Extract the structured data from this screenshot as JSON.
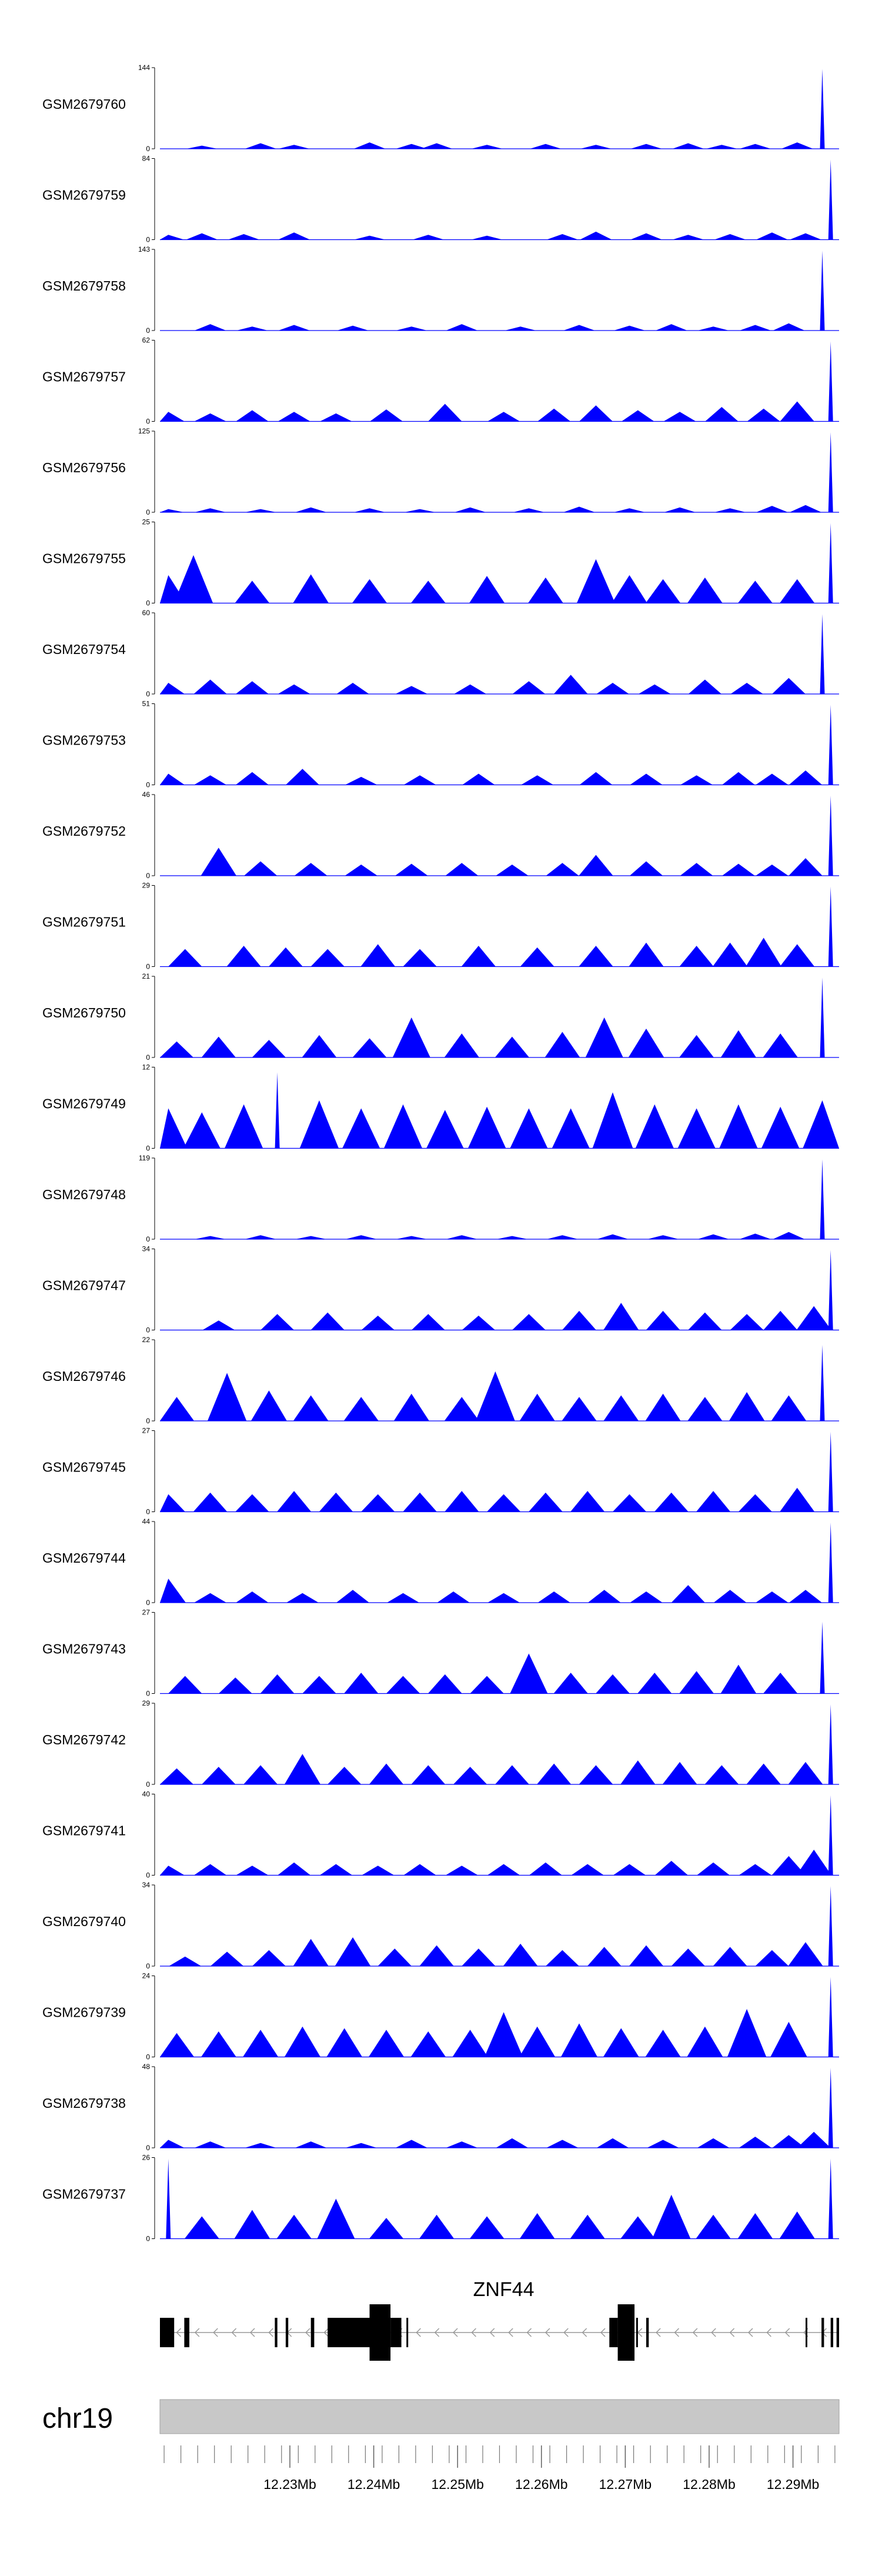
{
  "chart_data": {
    "type": "area",
    "chromosome": "chr19",
    "x_range_mb": [
      12.2145,
      12.2955
    ],
    "x_ticks": [
      "12.23Mb",
      "12.24Mb",
      "12.25Mb",
      "12.26Mb",
      "12.27Mb",
      "12.28Mb",
      "12.29Mb"
    ],
    "x_tick_values": [
      12.23,
      12.24,
      12.25,
      12.26,
      12.27,
      12.28,
      12.29
    ],
    "fill_color": "#0000ff",
    "tracks": [
      {
        "name": "GSM2679760",
        "ymax": "144",
        "ymin": "0",
        "peak_positions": [
          12.2195,
          12.2265,
          12.2305,
          12.2395,
          12.2445,
          12.2475,
          12.2535,
          12.2605,
          12.2665,
          12.2725,
          12.2775,
          12.2815,
          12.2855,
          12.2905,
          12.2935
        ],
        "peak_levels": [
          0.04,
          0.07,
          0.05,
          0.08,
          0.06,
          0.07,
          0.05,
          0.06,
          0.05,
          0.06,
          0.07,
          0.05,
          0.06,
          0.08,
          1.0
        ]
      },
      {
        "name": "GSM2679759",
        "ymax": "84",
        "ymin": "0",
        "peak_positions": [
          12.2155,
          12.2195,
          12.2245,
          12.2305,
          12.2395,
          12.2465,
          12.2535,
          12.2625,
          12.2665,
          12.2725,
          12.2775,
          12.2825,
          12.2875,
          12.2915,
          12.2945
        ],
        "peak_levels": [
          0.06,
          0.08,
          0.07,
          0.09,
          0.05,
          0.06,
          0.05,
          0.07,
          0.1,
          0.08,
          0.06,
          0.07,
          0.09,
          0.08,
          1.0
        ]
      },
      {
        "name": "GSM2679758",
        "ymax": "143",
        "ymin": "0",
        "peak_positions": [
          12.2205,
          12.2255,
          12.2305,
          12.2375,
          12.2445,
          12.2505,
          12.2575,
          12.2645,
          12.2705,
          12.2755,
          12.2805,
          12.2855,
          12.2895,
          12.2935
        ],
        "peak_levels": [
          0.08,
          0.05,
          0.07,
          0.06,
          0.05,
          0.08,
          0.05,
          0.07,
          0.06,
          0.08,
          0.05,
          0.07,
          0.09,
          1.0
        ]
      },
      {
        "name": "GSM2679757",
        "ymax": "62",
        "ymin": "0",
        "peak_positions": [
          12.2155,
          12.2205,
          12.2255,
          12.2305,
          12.2355,
          12.2415,
          12.2485,
          12.2555,
          12.2615,
          12.2665,
          12.2715,
          12.2765,
          12.2815,
          12.2865,
          12.2905,
          12.2945
        ],
        "peak_levels": [
          0.12,
          0.1,
          0.14,
          0.12,
          0.1,
          0.15,
          0.22,
          0.12,
          0.16,
          0.2,
          0.14,
          0.12,
          0.18,
          0.16,
          0.25,
          1.0
        ]
      },
      {
        "name": "GSM2679756",
        "ymax": "125",
        "ymin": "0",
        "peak_positions": [
          12.2155,
          12.2205,
          12.2265,
          12.2325,
          12.2395,
          12.2455,
          12.2515,
          12.2585,
          12.2645,
          12.2705,
          12.2765,
          12.2825,
          12.2875,
          12.2915,
          12.2945
        ],
        "peak_levels": [
          0.04,
          0.05,
          0.04,
          0.06,
          0.05,
          0.04,
          0.06,
          0.05,
          0.07,
          0.05,
          0.06,
          0.05,
          0.08,
          0.09,
          1.0
        ]
      },
      {
        "name": "GSM2679755",
        "ymax": "25",
        "ymin": "0",
        "peak_positions": [
          12.2155,
          12.2185,
          12.2255,
          12.2325,
          12.2395,
          12.2465,
          12.2535,
          12.2605,
          12.2665,
          12.2705,
          12.2745,
          12.2795,
          12.2855,
          12.2905,
          12.2945
        ],
        "peak_levels": [
          0.35,
          0.6,
          0.28,
          0.36,
          0.3,
          0.28,
          0.34,
          0.32,
          0.55,
          0.35,
          0.3,
          0.32,
          0.28,
          0.3,
          1.0
        ]
      },
      {
        "name": "GSM2679754",
        "ymax": "60",
        "ymin": "0",
        "peak_positions": [
          12.2155,
          12.2205,
          12.2255,
          12.2305,
          12.2375,
          12.2445,
          12.2515,
          12.2585,
          12.2635,
          12.2685,
          12.2735,
          12.2795,
          12.2845,
          12.2895,
          12.2935
        ],
        "peak_levels": [
          0.14,
          0.18,
          0.16,
          0.12,
          0.14,
          0.1,
          0.12,
          0.16,
          0.24,
          0.14,
          0.12,
          0.18,
          0.14,
          0.2,
          1.0
        ]
      },
      {
        "name": "GSM2679753",
        "ymax": "51",
        "ymin": "0",
        "peak_positions": [
          12.2155,
          12.2205,
          12.2255,
          12.2315,
          12.2385,
          12.2455,
          12.2525,
          12.2595,
          12.2665,
          12.2725,
          12.2785,
          12.2835,
          12.2875,
          12.2915,
          12.2945
        ],
        "peak_levels": [
          0.14,
          0.12,
          0.16,
          0.2,
          0.1,
          0.12,
          0.14,
          0.12,
          0.16,
          0.14,
          0.12,
          0.16,
          0.14,
          0.18,
          1.0
        ]
      },
      {
        "name": "GSM2679752",
        "ymax": "46",
        "ymin": "0",
        "peak_positions": [
          12.2215,
          12.2265,
          12.2325,
          12.2385,
          12.2445,
          12.2505,
          12.2565,
          12.2625,
          12.2665,
          12.2725,
          12.2785,
          12.2835,
          12.2875,
          12.2915,
          12.2945
        ],
        "peak_levels": [
          0.35,
          0.18,
          0.16,
          0.14,
          0.15,
          0.16,
          0.14,
          0.16,
          0.26,
          0.18,
          0.16,
          0.15,
          0.14,
          0.22,
          1.0
        ]
      },
      {
        "name": "GSM2679751",
        "ymax": "29",
        "ymin": "0",
        "peak_positions": [
          12.2175,
          12.2245,
          12.2295,
          12.2345,
          12.2405,
          12.2455,
          12.2525,
          12.2595,
          12.2665,
          12.2725,
          12.2785,
          12.2825,
          12.2865,
          12.2905,
          12.2945
        ],
        "peak_levels": [
          0.22,
          0.26,
          0.24,
          0.22,
          0.28,
          0.22,
          0.26,
          0.24,
          0.26,
          0.3,
          0.26,
          0.3,
          0.36,
          0.28,
          1.0
        ]
      },
      {
        "name": "GSM2679750",
        "ymax": "21",
        "ymin": "0",
        "peak_positions": [
          12.2165,
          12.2215,
          12.2275,
          12.2335,
          12.2395,
          12.2445,
          12.2505,
          12.2565,
          12.2625,
          12.2675,
          12.2725,
          12.2785,
          12.2835,
          12.2885,
          12.2935
        ],
        "peak_levels": [
          0.2,
          0.26,
          0.22,
          0.28,
          0.24,
          0.5,
          0.3,
          0.26,
          0.32,
          0.5,
          0.36,
          0.28,
          0.34,
          0.3,
          1.0
        ]
      },
      {
        "name": "GSM2679749",
        "ymax": "12",
        "ymin": "0",
        "peak_positions": [
          12.2155,
          12.2195,
          12.2245,
          12.2285,
          12.2335,
          12.2385,
          12.2435,
          12.2485,
          12.2535,
          12.2585,
          12.2635,
          12.2685,
          12.2735,
          12.2785,
          12.2835,
          12.2885,
          12.2935
        ],
        "peak_levels": [
          0.5,
          0.45,
          0.55,
          0.95,
          0.6,
          0.5,
          0.55,
          0.48,
          0.52,
          0.5,
          0.5,
          0.7,
          0.55,
          0.5,
          0.55,
          0.52,
          0.6
        ]
      },
      {
        "name": "GSM2679748",
        "ymax": "119",
        "ymin": "0",
        "peak_positions": [
          12.2205,
          12.2265,
          12.2325,
          12.2385,
          12.2445,
          12.2505,
          12.2565,
          12.2625,
          12.2685,
          12.2745,
          12.2805,
          12.2855,
          12.2895,
          12.2935
        ],
        "peak_levels": [
          0.04,
          0.05,
          0.04,
          0.05,
          0.04,
          0.05,
          0.04,
          0.05,
          0.06,
          0.05,
          0.06,
          0.07,
          0.09,
          1.0
        ]
      },
      {
        "name": "GSM2679747",
        "ymax": "34",
        "ymin": "0",
        "peak_positions": [
          12.2215,
          12.2285,
          12.2345,
          12.2405,
          12.2465,
          12.2525,
          12.2585,
          12.2645,
          12.2695,
          12.2745,
          12.2795,
          12.2845,
          12.2885,
          12.2925,
          12.2945
        ],
        "peak_levels": [
          0.12,
          0.2,
          0.22,
          0.18,
          0.2,
          0.18,
          0.2,
          0.24,
          0.34,
          0.24,
          0.22,
          0.2,
          0.24,
          0.3,
          1.0
        ]
      },
      {
        "name": "GSM2679746",
        "ymax": "22",
        "ymin": "0",
        "peak_positions": [
          12.2165,
          12.2225,
          12.2275,
          12.2325,
          12.2385,
          12.2445,
          12.2505,
          12.2545,
          12.2595,
          12.2645,
          12.2695,
          12.2745,
          12.2795,
          12.2845,
          12.2895,
          12.2935
        ],
        "peak_levels": [
          0.3,
          0.6,
          0.38,
          0.32,
          0.3,
          0.34,
          0.3,
          0.62,
          0.34,
          0.3,
          0.32,
          0.34,
          0.3,
          0.36,
          0.32,
          0.95
        ]
      },
      {
        "name": "GSM2679745",
        "ymax": "27",
        "ymin": "0",
        "peak_positions": [
          12.2155,
          12.2205,
          12.2255,
          12.2305,
          12.2355,
          12.2405,
          12.2455,
          12.2505,
          12.2555,
          12.2605,
          12.2655,
          12.2705,
          12.2755,
          12.2805,
          12.2855,
          12.2905,
          12.2945
        ],
        "peak_levels": [
          0.22,
          0.24,
          0.22,
          0.26,
          0.24,
          0.22,
          0.24,
          0.26,
          0.22,
          0.24,
          0.26,
          0.22,
          0.24,
          0.26,
          0.22,
          0.3,
          1.0
        ]
      },
      {
        "name": "GSM2679744",
        "ymax": "44",
        "ymin": "0",
        "peak_positions": [
          12.2155,
          12.2205,
          12.2255,
          12.2315,
          12.2375,
          12.2435,
          12.2495,
          12.2555,
          12.2615,
          12.2675,
          12.2725,
          12.2775,
          12.2825,
          12.2875,
          12.2915,
          12.2945
        ],
        "peak_levels": [
          0.3,
          0.12,
          0.14,
          0.12,
          0.16,
          0.12,
          0.14,
          0.12,
          0.14,
          0.16,
          0.14,
          0.22,
          0.16,
          0.14,
          0.16,
          1.0
        ]
      },
      {
        "name": "GSM2679743",
        "ymax": "27",
        "ymin": "0",
        "peak_positions": [
          12.2175,
          12.2235,
          12.2285,
          12.2335,
          12.2385,
          12.2435,
          12.2485,
          12.2535,
          12.2585,
          12.2635,
          12.2685,
          12.2735,
          12.2785,
          12.2835,
          12.2885,
          12.2935
        ],
        "peak_levels": [
          0.22,
          0.2,
          0.24,
          0.22,
          0.26,
          0.22,
          0.24,
          0.22,
          0.5,
          0.26,
          0.24,
          0.26,
          0.28,
          0.36,
          0.26,
          0.9
        ]
      },
      {
        "name": "GSM2679742",
        "ymax": "29",
        "ymin": "0",
        "peak_positions": [
          12.2165,
          12.2215,
          12.2265,
          12.2315,
          12.2365,
          12.2415,
          12.2465,
          12.2515,
          12.2565,
          12.2615,
          12.2665,
          12.2715,
          12.2765,
          12.2815,
          12.2865,
          12.2915,
          12.2945
        ],
        "peak_levels": [
          0.2,
          0.22,
          0.24,
          0.38,
          0.22,
          0.26,
          0.24,
          0.22,
          0.24,
          0.26,
          0.24,
          0.3,
          0.28,
          0.24,
          0.26,
          0.28,
          1.0
        ]
      },
      {
        "name": "GSM2679741",
        "ymax": "40",
        "ymin": "0",
        "peak_positions": [
          12.2155,
          12.2205,
          12.2255,
          12.2305,
          12.2355,
          12.2405,
          12.2455,
          12.2505,
          12.2555,
          12.2605,
          12.2655,
          12.2705,
          12.2755,
          12.2805,
          12.2855,
          12.2895,
          12.2925,
          12.2945
        ],
        "peak_levels": [
          0.12,
          0.14,
          0.12,
          0.16,
          0.14,
          0.12,
          0.14,
          0.12,
          0.14,
          0.16,
          0.14,
          0.14,
          0.18,
          0.16,
          0.14,
          0.24,
          0.32,
          1.0
        ]
      },
      {
        "name": "GSM2679740",
        "ymax": "34",
        "ymin": "0",
        "peak_positions": [
          12.2175,
          12.2225,
          12.2275,
          12.2325,
          12.2375,
          12.2425,
          12.2475,
          12.2525,
          12.2575,
          12.2625,
          12.2675,
          12.2725,
          12.2775,
          12.2825,
          12.2875,
          12.2915,
          12.2945
        ],
        "peak_levels": [
          0.12,
          0.18,
          0.2,
          0.34,
          0.36,
          0.22,
          0.26,
          0.22,
          0.28,
          0.2,
          0.24,
          0.26,
          0.22,
          0.24,
          0.2,
          0.3,
          1.0
        ]
      },
      {
        "name": "GSM2679739",
        "ymax": "24",
        "ymin": "0",
        "peak_positions": [
          12.2165,
          12.2215,
          12.2265,
          12.2315,
          12.2365,
          12.2415,
          12.2465,
          12.2515,
          12.2555,
          12.2595,
          12.2645,
          12.2695,
          12.2745,
          12.2795,
          12.2845,
          12.2895,
          12.2945
        ],
        "peak_levels": [
          0.3,
          0.32,
          0.34,
          0.38,
          0.36,
          0.34,
          0.32,
          0.34,
          0.56,
          0.38,
          0.42,
          0.36,
          0.34,
          0.38,
          0.6,
          0.44,
          1.0
        ]
      },
      {
        "name": "GSM2679738",
        "ymax": "48",
        "ymin": "0",
        "peak_positions": [
          12.2155,
          12.2205,
          12.2265,
          12.2325,
          12.2385,
          12.2445,
          12.2505,
          12.2565,
          12.2625,
          12.2685,
          12.2745,
          12.2805,
          12.2855,
          12.2895,
          12.2925,
          12.2945
        ],
        "peak_levels": [
          0.1,
          0.08,
          0.06,
          0.08,
          0.06,
          0.1,
          0.08,
          0.12,
          0.1,
          0.12,
          0.1,
          0.12,
          0.14,
          0.16,
          0.2,
          1.0
        ]
      },
      {
        "name": "GSM2679737",
        "ymax": "26",
        "ymin": "0",
        "peak_positions": [
          12.2155,
          12.2195,
          12.2255,
          12.2305,
          12.2355,
          12.2415,
          12.2475,
          12.2535,
          12.2595,
          12.2655,
          12.2715,
          12.2755,
          12.2805,
          12.2855,
          12.2905,
          12.2945
        ],
        "peak_levels": [
          1.0,
          0.28,
          0.36,
          0.3,
          0.5,
          0.26,
          0.3,
          0.28,
          0.32,
          0.3,
          0.28,
          0.55,
          0.3,
          0.32,
          0.34,
          1.0
        ]
      }
    ],
    "gene": {
      "name": "ZNF44",
      "strand": "-",
      "start_mb": 12.2145,
      "end_mb": 12.2955,
      "exons": [
        {
          "start": 12.2145,
          "end": 12.2162,
          "height": "short"
        },
        {
          "start": 12.2174,
          "end": 12.218,
          "height": "short"
        },
        {
          "start": 12.2282,
          "end": 12.2285,
          "height": "short"
        },
        {
          "start": 12.2295,
          "end": 12.2298,
          "height": "short"
        },
        {
          "start": 12.2325,
          "end": 12.2329,
          "height": "short"
        },
        {
          "start": 12.2345,
          "end": 12.2395,
          "height": "short"
        },
        {
          "start": 12.2395,
          "end": 12.242,
          "height": "tall"
        },
        {
          "start": 12.242,
          "end": 12.2433,
          "height": "short"
        },
        {
          "start": 12.2439,
          "end": 12.2441,
          "height": "short"
        },
        {
          "start": 12.2681,
          "end": 12.2691,
          "height": "short"
        },
        {
          "start": 12.2691,
          "end": 12.2711,
          "height": "tall"
        },
        {
          "start": 12.2713,
          "end": 12.2715,
          "height": "short"
        },
        {
          "start": 12.2725,
          "end": 12.2728,
          "height": "short"
        },
        {
          "start": 12.2915,
          "end": 12.2917,
          "height": "short"
        },
        {
          "start": 12.2934,
          "end": 12.2937,
          "height": "short"
        },
        {
          "start": 12.2945,
          "end": 12.2948,
          "height": "short"
        },
        {
          "start": 12.2952,
          "end": 12.2955,
          "height": "short"
        }
      ]
    },
    "ideogram_color": "#c8c8c8"
  }
}
